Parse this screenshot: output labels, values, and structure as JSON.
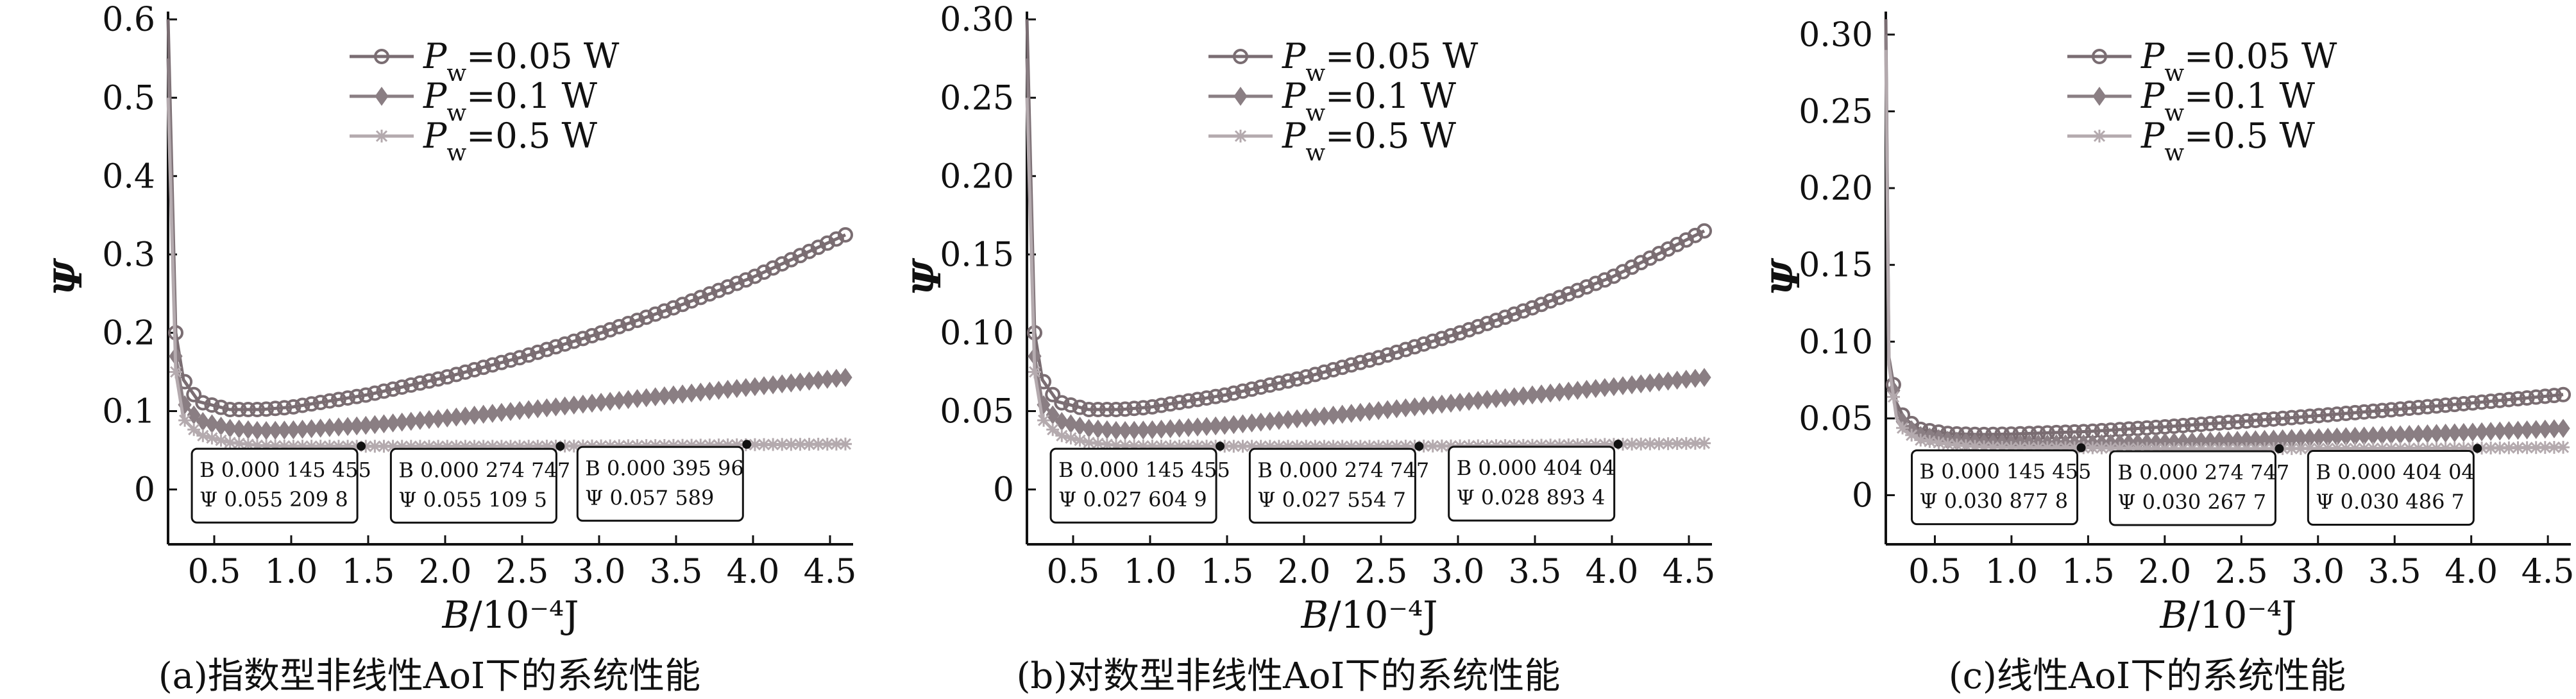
{
  "chart_data": [
    {
      "type": "line",
      "xlabel": "B/10⁻⁴J",
      "ylabel": "Ψ",
      "caption": "(a)指数型非线性AoI下的系统性能",
      "xlim": [
        0.2,
        4.65
      ],
      "ylim": [
        -0.07,
        0.61
      ],
      "xticks": [
        0.5,
        1.0,
        1.5,
        2.0,
        2.5,
        3.0,
        3.5,
        4.0,
        4.5
      ],
      "xtick_labels": [
        "0.5",
        "1.0",
        "1.5",
        "2.0",
        "2.5",
        "3.0",
        "3.5",
        "4.0",
        "4.5"
      ],
      "yticks": [
        0,
        0.1,
        0.2,
        0.3,
        0.4,
        0.5,
        0.6
      ],
      "ytick_labels": [
        "0",
        "0.1",
        "0.2",
        "0.3",
        "0.4",
        "0.5",
        "0.6"
      ],
      "legend_position": "top-left",
      "series": [
        {
          "name": "P_w=0.05 W",
          "legend_main": "P",
          "legend_sub": "w",
          "legend_rest": "=0.05 W",
          "color": "#7a6d72",
          "marker": "circle",
          "x": [
            0.2,
            0.25,
            0.3,
            0.4,
            0.6,
            0.8,
            1.0,
            1.5,
            2.0,
            2.5,
            3.0,
            3.5,
            4.0,
            4.6
          ],
          "values": [
            0.6,
            0.2,
            0.14,
            0.112,
            0.102,
            0.102,
            0.105,
            0.121,
            0.143,
            0.169,
            0.199,
            0.233,
            0.271,
            0.325
          ]
        },
        {
          "name": "P_w=0.1 W",
          "legend_main": "P",
          "legend_sub": "w",
          "legend_rest": "=0.1 W",
          "color": "#8a7e83",
          "marker": "diamond",
          "x": [
            0.2,
            0.25,
            0.3,
            0.4,
            0.6,
            0.8,
            1.0,
            1.5,
            2.0,
            2.5,
            3.0,
            3.5,
            4.0,
            4.6
          ],
          "values": [
            0.55,
            0.17,
            0.11,
            0.088,
            0.078,
            0.075,
            0.076,
            0.082,
            0.091,
            0.101,
            0.111,
            0.121,
            0.131,
            0.143
          ]
        },
        {
          "name": "P_w=0.5 W",
          "legend_main": "P",
          "legend_sub": "w",
          "legend_rest": "=0.5 W",
          "color": "#b4aaae",
          "marker": "star",
          "x": [
            0.2,
            0.25,
            0.3,
            0.4,
            0.6,
            0.8,
            1.0,
            1.5,
            2.0,
            2.5,
            3.0,
            3.5,
            4.0,
            4.6
          ],
          "values": [
            0.5,
            0.15,
            0.09,
            0.07,
            0.06,
            0.056,
            0.0553,
            0.0551,
            0.0551,
            0.0552,
            0.0556,
            0.0563,
            0.0572,
            0.058
          ]
        }
      ],
      "datatips": [
        {
          "x": 1.45455,
          "y": 0.0552098,
          "b": "B 0.000 145 455",
          "psi": "Ψ 0.055 209 8"
        },
        {
          "x": 2.74747,
          "y": 0.0551095,
          "b": "B 0.000 274 747",
          "psi": "Ψ 0.055 109 5"
        },
        {
          "x": 3.9596,
          "y": 0.057589,
          "b": "B 0.000 395 96",
          "psi": "Ψ 0.057 589"
        }
      ]
    },
    {
      "type": "line",
      "xlabel": "B/10⁻⁴J",
      "ylabel": "Ψ",
      "caption": "(b)对数型非线性AoI下的系统性能",
      "xlim": [
        0.2,
        4.65
      ],
      "ylim": [
        -0.035,
        0.305
      ],
      "xticks": [
        0.5,
        1.0,
        1.5,
        2.0,
        2.5,
        3.0,
        3.5,
        4.0,
        4.5
      ],
      "xtick_labels": [
        "0.5",
        "1.0",
        "1.5",
        "2.0",
        "2.5",
        "3.0",
        "3.5",
        "4.0",
        "4.5"
      ],
      "yticks": [
        0,
        0.05,
        0.1,
        0.15,
        0.2,
        0.25,
        0.3
      ],
      "ytick_labels": [
        "0",
        "0.05",
        "0.10",
        "0.15",
        "0.20",
        "0.25",
        "0.30"
      ],
      "legend_position": "top-center",
      "series": [
        {
          "name": "P_w=0.05 W",
          "legend_main": "P",
          "legend_sub": "w",
          "legend_rest": "=0.05 W",
          "color": "#7a6d72",
          "marker": "circle",
          "x": [
            0.2,
            0.25,
            0.3,
            0.4,
            0.6,
            0.8,
            1.0,
            1.5,
            2.0,
            2.5,
            3.0,
            3.5,
            4.0,
            4.6
          ],
          "values": [
            0.3,
            0.1,
            0.07,
            0.056,
            0.051,
            0.051,
            0.0525,
            0.0605,
            0.0715,
            0.0845,
            0.0995,
            0.1165,
            0.1355,
            0.165
          ]
        },
        {
          "name": "P_w=0.1 W",
          "legend_main": "P",
          "legend_sub": "w",
          "legend_rest": "=0.1 W",
          "color": "#8a7e83",
          "marker": "diamond",
          "x": [
            0.2,
            0.25,
            0.3,
            0.4,
            0.6,
            0.8,
            1.0,
            1.5,
            2.0,
            2.5,
            3.0,
            3.5,
            4.0,
            4.6
          ],
          "values": [
            0.275,
            0.085,
            0.055,
            0.044,
            0.039,
            0.0375,
            0.038,
            0.041,
            0.0455,
            0.0505,
            0.0555,
            0.0605,
            0.0655,
            0.0715
          ]
        },
        {
          "name": "P_w=0.5 W",
          "legend_main": "P",
          "legend_sub": "w",
          "legend_rest": "=0.5 W",
          "color": "#b4aaae",
          "marker": "star",
          "x": [
            0.2,
            0.25,
            0.3,
            0.4,
            0.6,
            0.8,
            1.0,
            1.5,
            2.0,
            2.5,
            3.0,
            3.5,
            4.0,
            4.6
          ],
          "values": [
            0.25,
            0.075,
            0.045,
            0.035,
            0.03,
            0.028,
            0.0277,
            0.0276,
            0.02756,
            0.02758,
            0.0278,
            0.0282,
            0.0288,
            0.0295
          ]
        }
      ],
      "datatips": [
        {
          "x": 1.45455,
          "y": 0.0276049,
          "b": "B 0.000 145 455",
          "psi": "Ψ 0.027 604 9"
        },
        {
          "x": 2.74747,
          "y": 0.0275547,
          "b": "B 0.000 274 747",
          "psi": "Ψ 0.027 554 7"
        },
        {
          "x": 4.0404,
          "y": 0.0288934,
          "b": "B 0.000 404 04",
          "psi": "Ψ 0.028 893 4"
        }
      ]
    },
    {
      "type": "line",
      "xlabel": "B/10⁻⁴J",
      "ylabel": "Ψ",
      "caption": "(c)线性AoI下的系统性能",
      "xlim": [
        0.18,
        4.65
      ],
      "ylim": [
        -0.032,
        0.315
      ],
      "xticks": [
        0.5,
        1.0,
        1.5,
        2.0,
        2.5,
        3.0,
        3.5,
        4.0,
        4.5
      ],
      "xtick_labels": [
        "0.5",
        "1.0",
        "1.5",
        "2.0",
        "2.5",
        "3.0",
        "3.5",
        "4.0",
        "4.5"
      ],
      "yticks": [
        0,
        0.05,
        0.1,
        0.15,
        0.2,
        0.25,
        0.3
      ],
      "ytick_labels": [
        "0",
        "0.05",
        "0.10",
        "0.15",
        "0.20",
        "0.25",
        "0.30"
      ],
      "legend_position": "top-center",
      "series": [
        {
          "name": "P_w=0.05 W",
          "legend_main": "P",
          "legend_sub": "w",
          "legend_rest": "=0.05 W",
          "color": "#7a6d72",
          "marker": "circle",
          "x": [
            0.18,
            0.2,
            0.25,
            0.3,
            0.4,
            0.6,
            0.8,
            1.0,
            1.5,
            2.0,
            2.5,
            3.0,
            3.5,
            4.0,
            4.6
          ],
          "values": [
            0.31,
            0.09,
            0.06,
            0.05,
            0.043,
            0.04,
            0.0395,
            0.0398,
            0.0415,
            0.0445,
            0.048,
            0.0518,
            0.0558,
            0.06,
            0.0655
          ]
        },
        {
          "name": "P_w=0.1 W",
          "legend_main": "P",
          "legend_sub": "w",
          "legend_rest": "=0.1 W",
          "color": "#8a7e83",
          "marker": "diamond",
          "x": [
            0.18,
            0.2,
            0.25,
            0.3,
            0.4,
            0.6,
            0.8,
            1.0,
            1.5,
            2.0,
            2.5,
            3.0,
            3.5,
            4.0,
            4.6
          ],
          "values": [
            0.3,
            0.088,
            0.055,
            0.046,
            0.039,
            0.0355,
            0.034,
            0.0335,
            0.0335,
            0.0345,
            0.0358,
            0.0375,
            0.0392,
            0.041,
            0.0435
          ]
        },
        {
          "name": "P_w=0.5 W",
          "legend_main": "P",
          "legend_sub": "w",
          "legend_rest": "=0.5 W",
          "color": "#b4aaae",
          "marker": "star",
          "x": [
            0.18,
            0.2,
            0.25,
            0.3,
            0.4,
            0.6,
            0.8,
            1.0,
            1.5,
            2.0,
            2.5,
            3.0,
            3.5,
            4.0,
            4.6
          ],
          "values": [
            0.29,
            0.085,
            0.05,
            0.042,
            0.036,
            0.033,
            0.0315,
            0.031,
            0.0309,
            0.0303,
            0.0303,
            0.0304,
            0.0305,
            0.0306,
            0.0312
          ]
        }
      ],
      "datatips": [
        {
          "x": 1.45455,
          "y": 0.0308778,
          "b": "B 0.000 145 455",
          "psi": "Ψ 0.030 877 8"
        },
        {
          "x": 2.74747,
          "y": 0.0302677,
          "b": "B 0.000 274 747",
          "psi": "Ψ 0.030 267 7"
        },
        {
          "x": 4.0404,
          "y": 0.0304867,
          "b": "B 0.000 404 04",
          "psi": "Ψ 0.030 486 7"
        }
      ]
    }
  ]
}
